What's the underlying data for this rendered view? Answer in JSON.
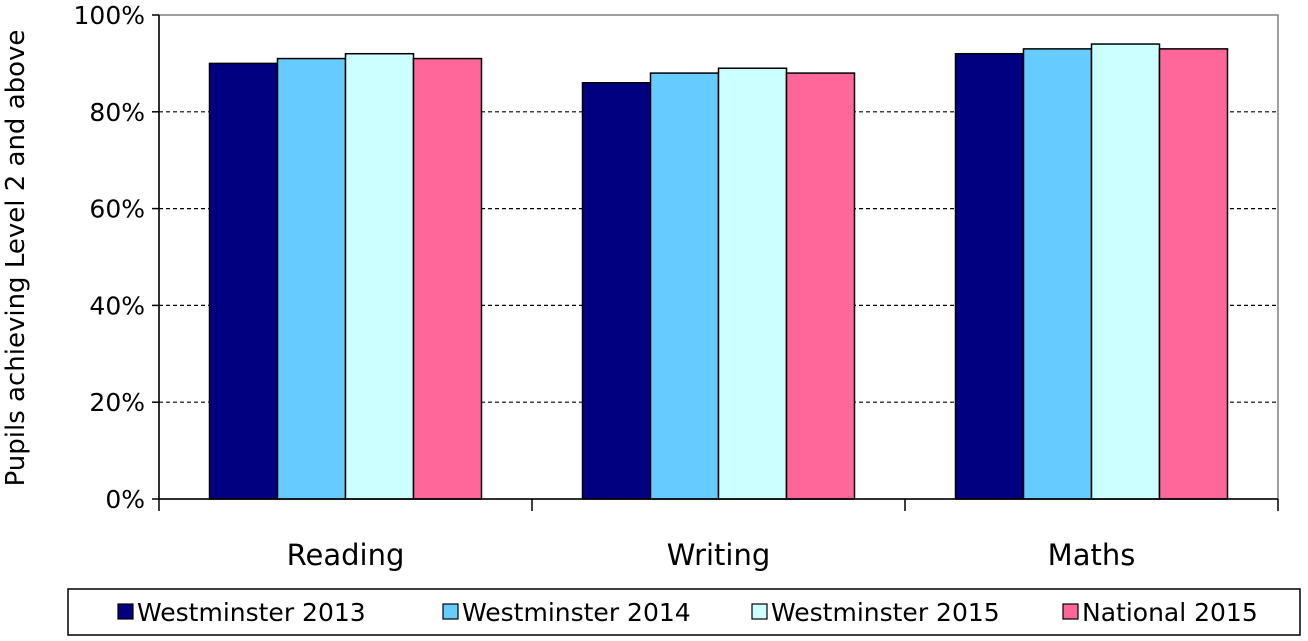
{
  "chart_data": {
    "type": "bar",
    "title": "",
    "xlabel": "",
    "ylabel": "Pupils achieving Level 2 and above",
    "ylim": [
      0,
      100
    ],
    "yticks": [
      "0%",
      "20%",
      "40%",
      "60%",
      "80%",
      "100%"
    ],
    "grid": "horizontal dashed",
    "legend_position": "bottom",
    "categories": [
      "Reading",
      "Writing",
      "Maths"
    ],
    "series": [
      {
        "name": "Westminster 2013",
        "color": "#000080",
        "values": [
          90,
          86,
          92
        ]
      },
      {
        "name": "Westminster 2014",
        "color": "#66CCFF",
        "values": [
          91,
          88,
          93
        ]
      },
      {
        "name": "Westminster 2015",
        "color": "#CCFFFF",
        "values": [
          92,
          89,
          94
        ]
      },
      {
        "name": "National 2015",
        "color": "#FF6699",
        "values": [
          91,
          88,
          93
        ]
      }
    ]
  }
}
